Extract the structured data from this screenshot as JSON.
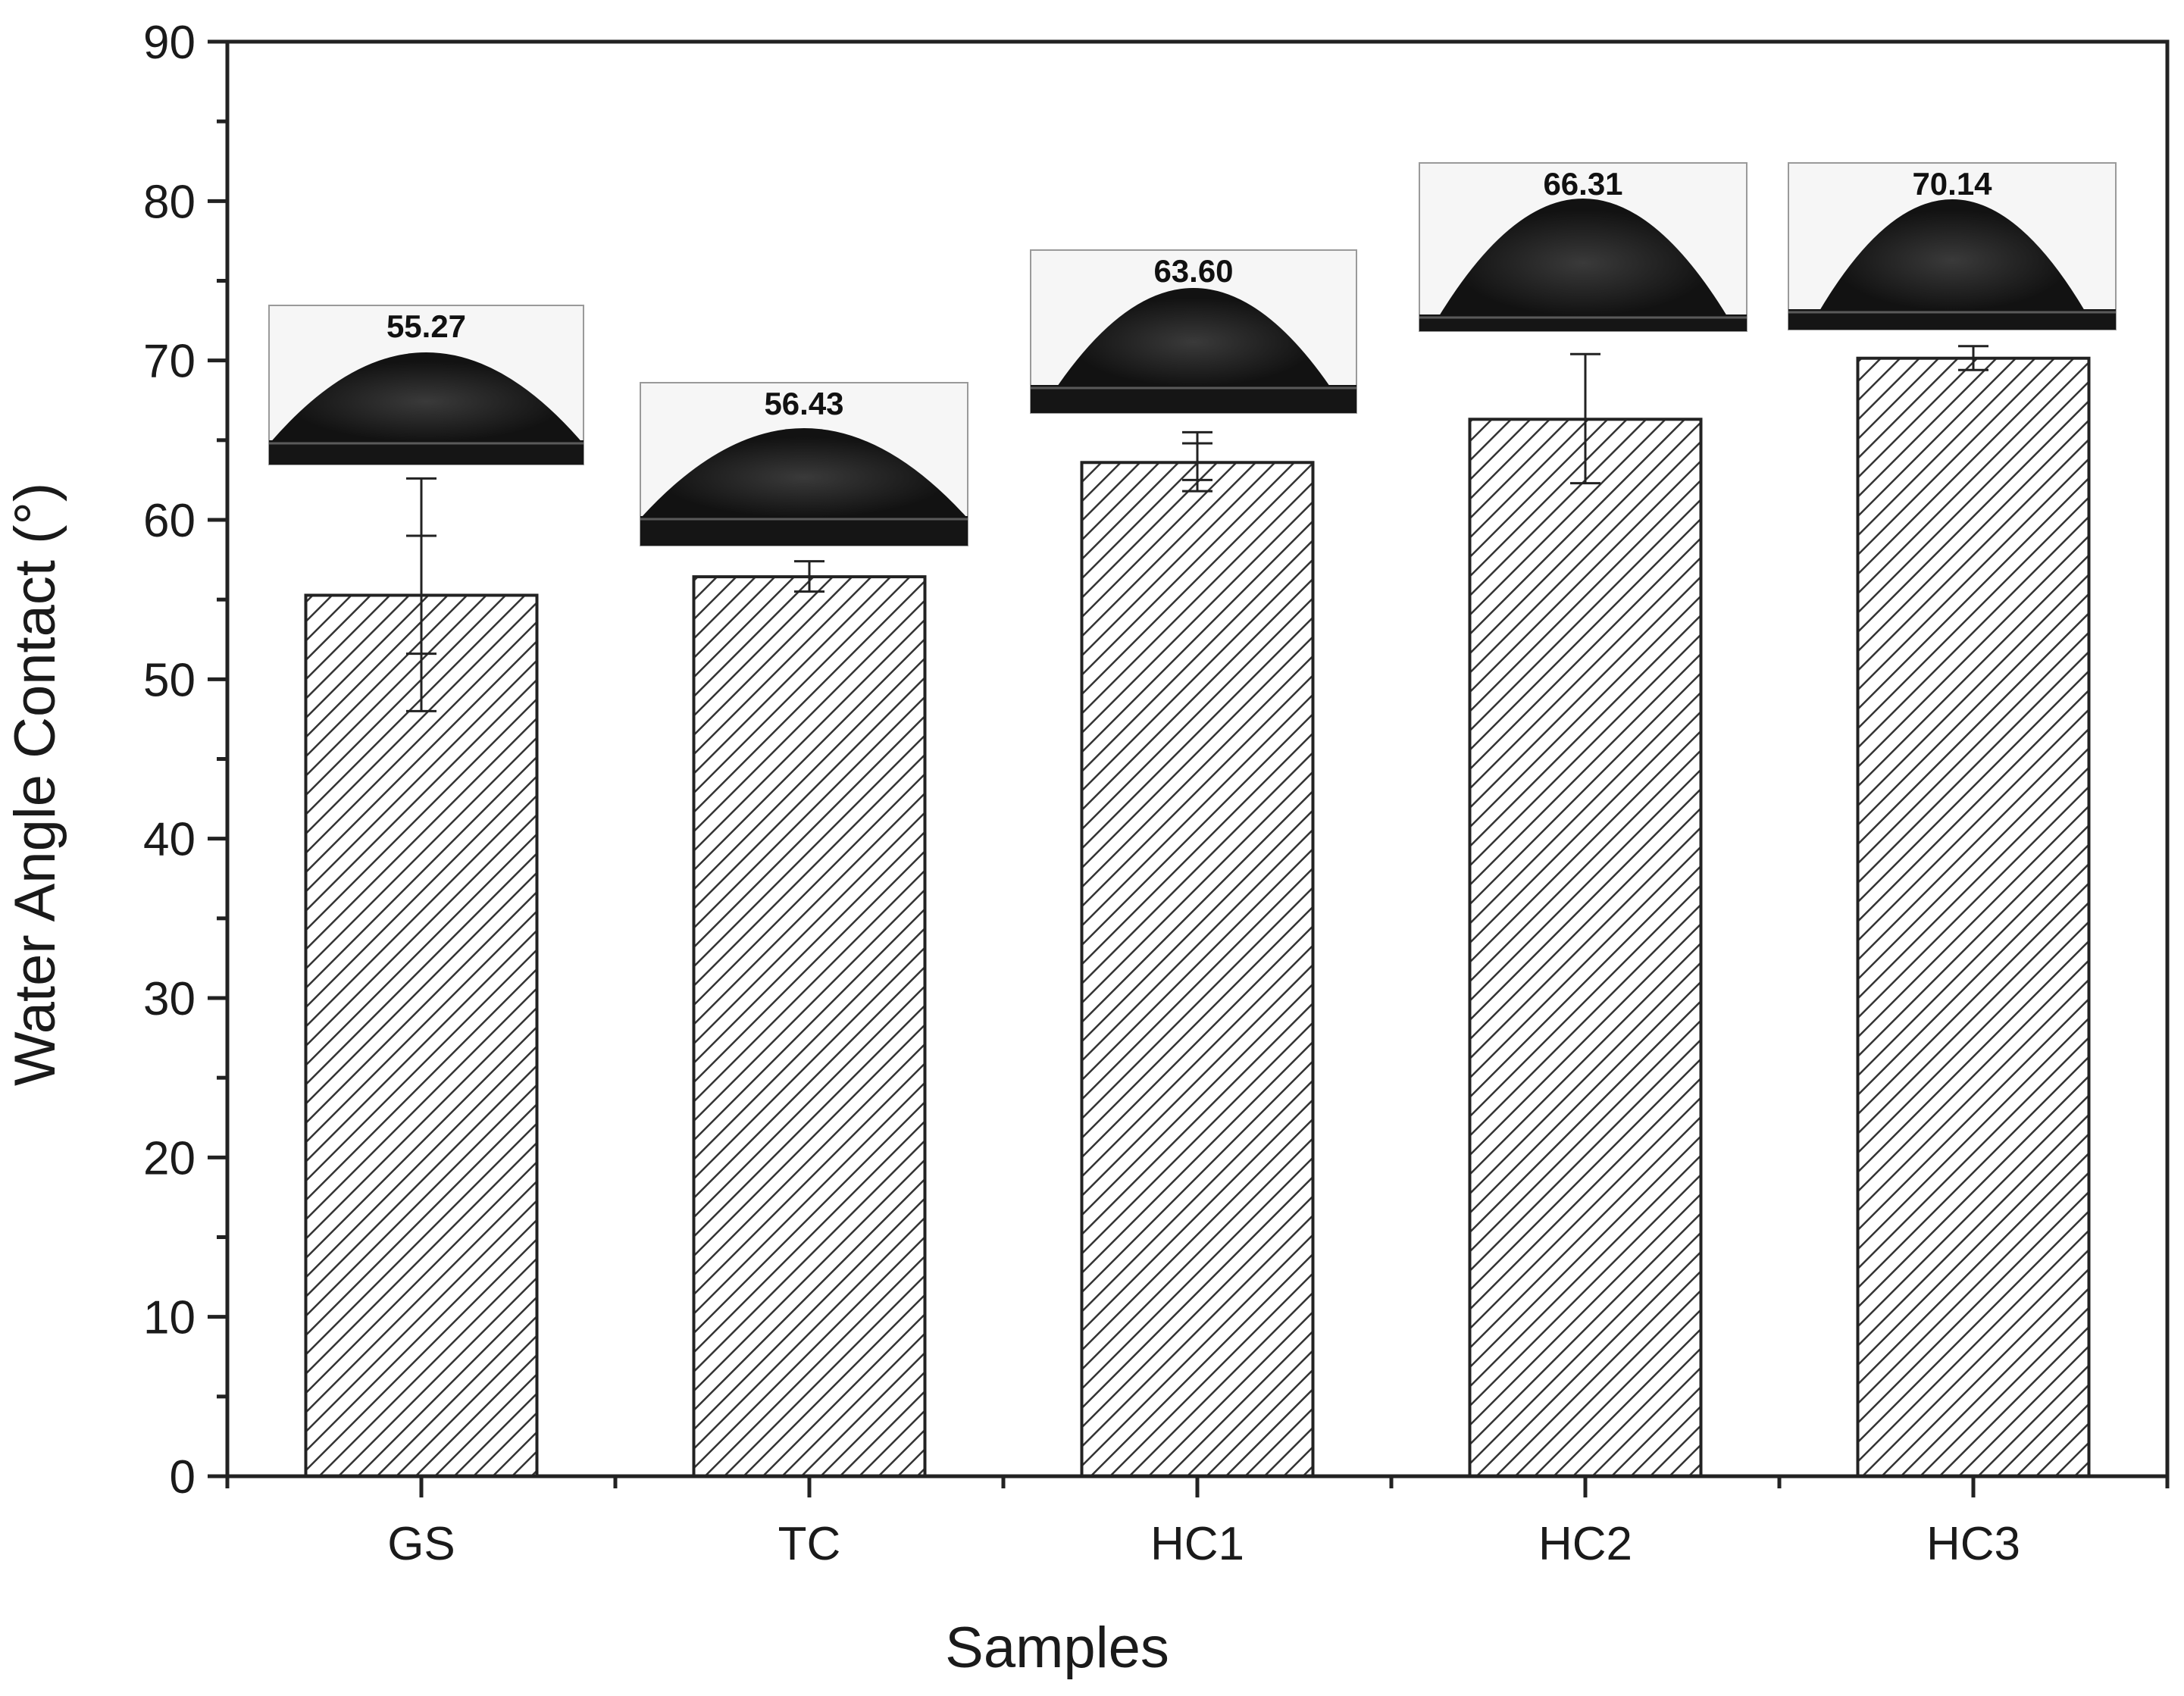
{
  "chart_data": {
    "type": "bar",
    "title": "",
    "xlabel": "Samples",
    "ylabel": "Water Angle Contact (°)",
    "categories": [
      "GS",
      "TC",
      "HC1",
      "HC2",
      "HC3"
    ],
    "values": [
      55.27,
      56.43,
      63.6,
      66.31,
      70.14
    ],
    "error_outer": [
      [
        48.0,
        62.6
      ],
      [
        55.5,
        57.4
      ],
      [
        61.8,
        65.5
      ],
      [
        62.3,
        70.4
      ],
      [
        69.4,
        70.9
      ]
    ],
    "error_inner": [
      [
        51.6,
        59.0
      ],
      null,
      [
        62.5,
        64.8
      ],
      null,
      null
    ],
    "inset_labels": [
      "55.27",
      "56.43",
      "63.60",
      "66.31",
      "70.14"
    ],
    "ylim": [
      0,
      90
    ],
    "yticks": [
      0,
      10,
      20,
      30,
      40,
      50,
      60,
      70,
      80,
      90
    ],
    "grid": false,
    "bar_fill": "diagonal-hatch",
    "colors": {
      "bar_edge": "#222222",
      "hatch": "#333333",
      "axis": "#222222",
      "drop": "#151515"
    }
  }
}
